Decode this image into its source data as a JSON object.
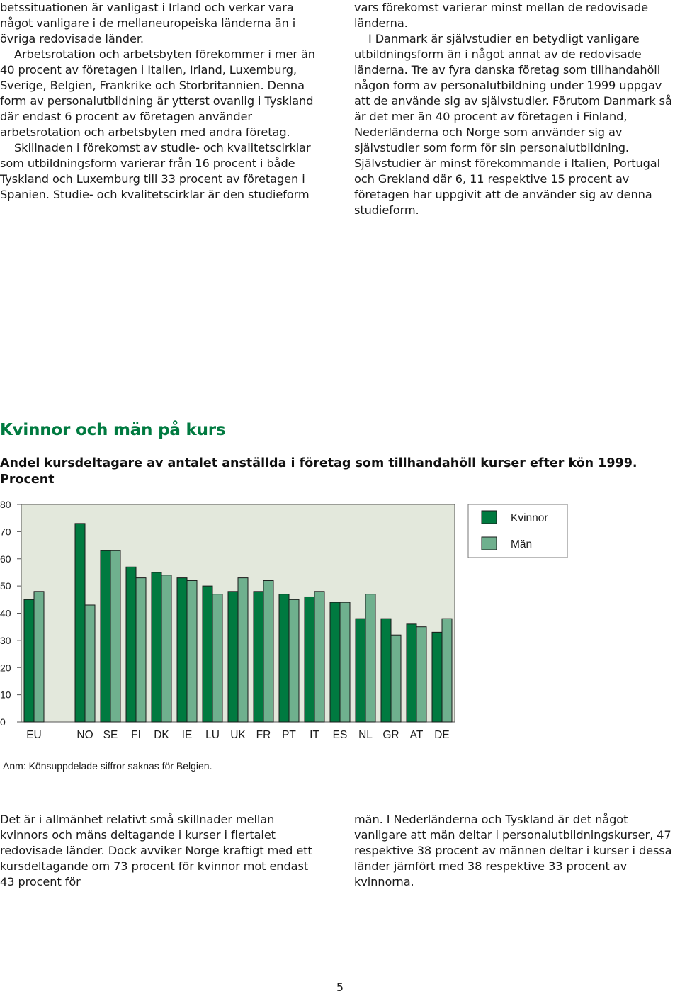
{
  "text_top_left": [
    "betssituationen är vanligast i Irland och verkar vara något vanligare i de mellaneuropeiska länderna än i övriga redovisade länder.",
    "Arbetsrotation och arbetsbyten förekommer i mer än 40 procent av företagen i Italien, Irland, Luxemburg, Sverige, Belgien, Frankrike och Storbritannien. Denna form av personalutbildning är ytterst ovanlig i Tyskland där endast 6 procent av företagen använder arbetsrotation och arbetsbyten med andra företag.",
    "Skillnaden i förekomst av studie- och kvalitetscirklar som utbildningsform varierar från 16 procent i både Tyskland och Luxemburg till 33 procent av företagen i Spanien. Studie- och kvalitetscirklar är den studieform"
  ],
  "text_top_right": [
    "vars förekomst varierar minst mellan de redovisade länderna.",
    "I Danmark är självstudier en betydligt vanligare utbildningsform än i något annat av de redovisade länderna. Tre av fyra danska företag som tillhandahöll någon form av personalutbildning under 1999 uppgav att de använde sig av självstudier. Förutom Danmark så är det mer än 40 procent av företagen i Finland, Nederländerna och Norge som använder sig av självstudier som form för sin personalutbildning. Självstudier är minst förekommande i Italien, Portugal och Grekland där 6, 11 respektive 15 procent av företagen har uppgivit att de använder sig av denna studieform."
  ],
  "section_heading": "Kvinnor och män på kurs",
  "figure_title": "Andel kursdeltagare av antalet anställda i företag som tillhandahöll kurser efter kön 1999. Procent",
  "chart_note": "Anm: Könsuppdelade siffror saknas för Belgien.",
  "text_bottom_left": "Det är i allmänhet relativt små skillnader mellan kvinnors och mäns deltagande i kurser i flertalet redovisade länder. Dock avviker Norge kraftigt med ett kursdeltagande om 73 procent för kvinnor mot endast 43 procent för",
  "text_bottom_right": "män. I Nederländerna och Tyskland är det något vanligare att män deltar i personalutbildningskurser, 47 respektive 38 procent av männen deltar i kurser i dessa länder jämfört med 38 respektive 33 procent av kvinnorna.",
  "page_number": "5",
  "chart_data": {
    "type": "bar",
    "title": "Andel kursdeltagare av antalet anställda i företag som tillhandahöll kurser efter kön 1999. Procent",
    "categories": [
      "EU",
      "NO",
      "SE",
      "FI",
      "DK",
      "IE",
      "LU",
      "UK",
      "FR",
      "PT",
      "IT",
      "ES",
      "NL",
      "GR",
      "AT",
      "DE"
    ],
    "series": [
      {
        "name": "Kvinnor",
        "color": "#007a40",
        "values": [
          45,
          73,
          63,
          57,
          55,
          53,
          50,
          48,
          48,
          47,
          46,
          44,
          38,
          38,
          36,
          33
        ]
      },
      {
        "name": "Män",
        "color": "#6fb08e",
        "values": [
          48,
          43,
          63,
          53,
          54,
          52,
          47,
          53,
          52,
          45,
          48,
          44,
          47,
          32,
          35,
          38
        ]
      }
    ],
    "yticks": [
      0,
      10,
      20,
      30,
      40,
      50,
      60,
      70,
      80
    ],
    "ylim": [
      0,
      80
    ],
    "xlabel": "",
    "ylabel": "",
    "legend_position": "top-right",
    "plot_background": "#e3e8dc",
    "grid": false
  }
}
